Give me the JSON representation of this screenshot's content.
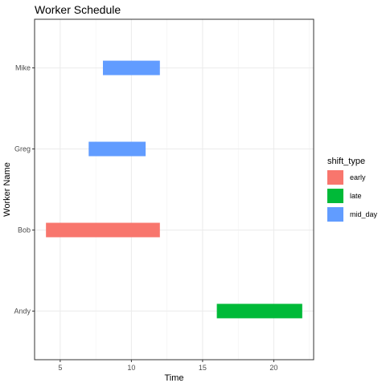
{
  "chart_data": {
    "type": "bar",
    "orientation": "horizontal-range",
    "title": "Worker Schedule",
    "xlabel": "Time",
    "ylabel": "Worker Name",
    "xlim": [
      3.2,
      22.8
    ],
    "xticks": [
      5,
      10,
      15,
      20
    ],
    "categories": [
      "Andy",
      "Bob",
      "Greg",
      "Mike"
    ],
    "bars": [
      {
        "worker": "Andy",
        "start": 16,
        "end": 22,
        "shift_type": "late"
      },
      {
        "worker": "Bob",
        "start": 4,
        "end": 12,
        "shift_type": "early"
      },
      {
        "worker": "Greg",
        "start": 7,
        "end": 11,
        "shift_type": "mid_day"
      },
      {
        "worker": "Mike",
        "start": 8,
        "end": 12,
        "shift_type": "mid_day"
      }
    ],
    "legend": {
      "title": "shift_type",
      "position": "right",
      "entries": [
        {
          "label": "early",
          "color": "#F8766D"
        },
        {
          "label": "late",
          "color": "#00BA38"
        },
        {
          "label": "mid_day",
          "color": "#619CFF"
        }
      ]
    },
    "grid": true,
    "theme": "bw"
  }
}
